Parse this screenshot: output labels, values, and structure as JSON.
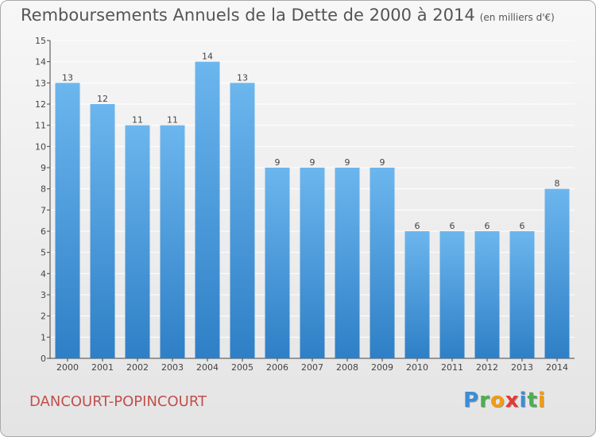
{
  "title": "Remboursements Annuels de la Dette de 2000 à 2014",
  "unit": "(en milliers d'€)",
  "location": "DANCOURT-POPINCOURT",
  "logo": {
    "letters": [
      "P",
      "r",
      "o",
      "x",
      "i",
      "t",
      "i"
    ],
    "colors": [
      "#3a8ed8",
      "#4caf50",
      "#f39c12",
      "#e53935",
      "#3a8ed8",
      "#4caf50",
      "#f39c12"
    ]
  },
  "colors": {
    "bar_light": "#6cb6ee",
    "bar_dark": "#2e7fc6",
    "axis": "#444444",
    "grid": "#ffffff"
  },
  "chart_data": {
    "type": "bar",
    "title": "Remboursements Annuels de la Dette de 2000 à 2014",
    "ylabel": "en milliers d'€",
    "xlabel": "",
    "categories": [
      "2000",
      "2001",
      "2002",
      "2003",
      "2004",
      "2005",
      "2006",
      "2007",
      "2008",
      "2009",
      "2010",
      "2011",
      "2012",
      "2013",
      "2014"
    ],
    "values": [
      13,
      12,
      11,
      11,
      14,
      13,
      9,
      9,
      9,
      9,
      6,
      6,
      6,
      6,
      8
    ],
    "ylim": [
      0,
      15
    ],
    "yticks": [
      0,
      1,
      2,
      3,
      4,
      5,
      6,
      7,
      8,
      9,
      10,
      11,
      12,
      13,
      14,
      15
    ],
    "grid": true
  }
}
